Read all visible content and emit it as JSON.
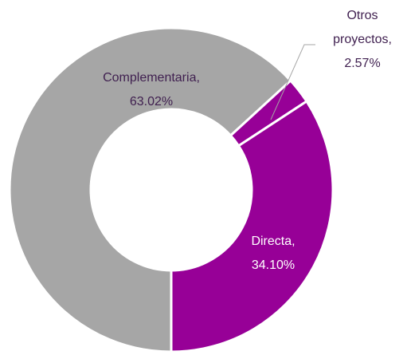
{
  "chart_data": {
    "type": "donut",
    "categories": [
      "Directa,",
      "Otros proyectos,",
      "Complementaria,"
    ],
    "values": [
      34.1,
      2.57,
      63.02
    ],
    "value_labels": [
      "34.10%",
      "2.57%",
      "63.02%"
    ],
    "colors": [
      "#970097",
      "#970097",
      "#a6a6a6"
    ]
  }
}
